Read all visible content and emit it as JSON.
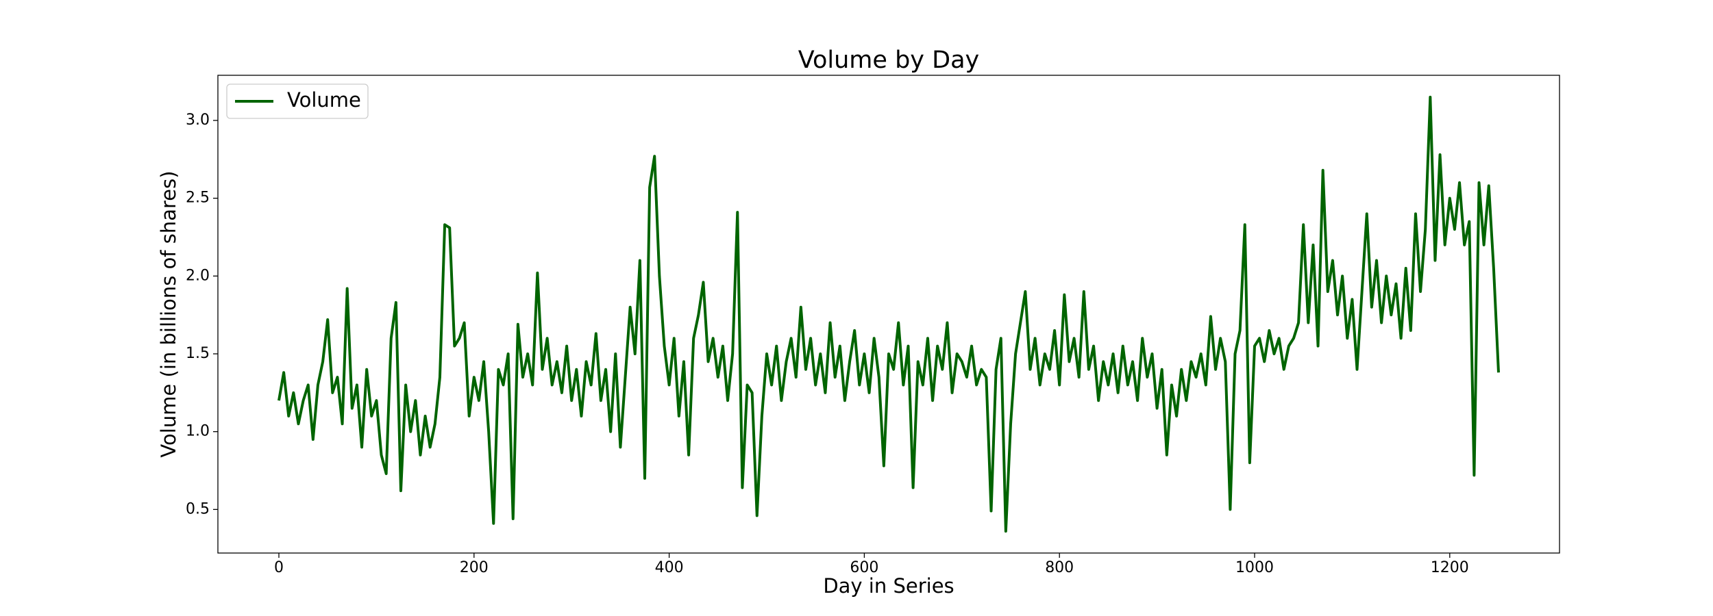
{
  "chart_data": {
    "type": "line",
    "title": "Volume by Day",
    "x_label": "Day in Series",
    "y_label": "Volume (in billions of shares)",
    "x": [
      0,
      5,
      10,
      15,
      20,
      25,
      30,
      35,
      40,
      45,
      50,
      55,
      60,
      65,
      70,
      75,
      80,
      85,
      90,
      95,
      100,
      105,
      110,
      115,
      120,
      125,
      130,
      135,
      140,
      145,
      150,
      155,
      160,
      165,
      170,
      175,
      180,
      185,
      190,
      195,
      200,
      205,
      210,
      215,
      220,
      225,
      230,
      235,
      240,
      245,
      250,
      255,
      260,
      265,
      270,
      275,
      280,
      285,
      290,
      295,
      300,
      305,
      310,
      315,
      320,
      325,
      330,
      335,
      340,
      345,
      350,
      355,
      360,
      365,
      370,
      375,
      380,
      385,
      390,
      395,
      400,
      405,
      410,
      415,
      420,
      425,
      430,
      435,
      440,
      445,
      450,
      455,
      460,
      465,
      470,
      475,
      480,
      485,
      490,
      495,
      500,
      505,
      510,
      515,
      520,
      525,
      530,
      535,
      540,
      545,
      550,
      555,
      560,
      565,
      570,
      575,
      580,
      585,
      590,
      595,
      600,
      605,
      610,
      615,
      620,
      625,
      630,
      635,
      640,
      645,
      650,
      655,
      660,
      665,
      670,
      675,
      680,
      685,
      690,
      695,
      700,
      705,
      710,
      715,
      720,
      725,
      730,
      735,
      740,
      745,
      750,
      755,
      760,
      765,
      770,
      775,
      780,
      785,
      790,
      795,
      800,
      805,
      810,
      815,
      820,
      825,
      830,
      835,
      840,
      845,
      850,
      855,
      860,
      865,
      870,
      875,
      880,
      885,
      890,
      895,
      900,
      905,
      910,
      915,
      920,
      925,
      930,
      935,
      940,
      945,
      950,
      955,
      960,
      965,
      970,
      975,
      980,
      985,
      990,
      995,
      1000,
      1005,
      1010,
      1015,
      1020,
      1025,
      1030,
      1035,
      1040,
      1045,
      1050,
      1055,
      1060,
      1065,
      1070,
      1075,
      1080,
      1085,
      1090,
      1095,
      1100,
      1105,
      1110,
      1115,
      1120,
      1125,
      1130,
      1135,
      1140,
      1145,
      1150,
      1155,
      1160,
      1165,
      1170,
      1175,
      1180,
      1185,
      1190,
      1195,
      1200,
      1205,
      1210,
      1215,
      1220,
      1225,
      1230,
      1235,
      1240,
      1245,
      1250
    ],
    "series": [
      {
        "name": "Volume",
        "color": "#006400",
        "values": [
          1.2,
          1.38,
          1.1,
          1.25,
          1.05,
          1.2,
          1.3,
          0.95,
          1.3,
          1.45,
          1.72,
          1.25,
          1.35,
          1.05,
          1.92,
          1.15,
          1.3,
          0.9,
          1.4,
          1.1,
          1.2,
          0.85,
          0.73,
          1.6,
          1.83,
          0.62,
          1.3,
          1.0,
          1.2,
          0.85,
          1.1,
          0.9,
          1.05,
          1.35,
          2.33,
          2.31,
          1.55,
          1.6,
          1.7,
          1.1,
          1.35,
          1.2,
          1.45,
          1.0,
          0.41,
          1.4,
          1.3,
          1.5,
          0.44,
          1.69,
          1.35,
          1.5,
          1.3,
          2.02,
          1.4,
          1.6,
          1.3,
          1.45,
          1.25,
          1.55,
          1.2,
          1.4,
          1.1,
          1.45,
          1.3,
          1.63,
          1.2,
          1.4,
          1.0,
          1.5,
          0.9,
          1.35,
          1.8,
          1.5,
          2.1,
          0.7,
          2.57,
          2.77,
          2.0,
          1.55,
          1.3,
          1.6,
          1.1,
          1.45,
          0.85,
          1.6,
          1.75,
          1.96,
          1.45,
          1.6,
          1.35,
          1.55,
          1.2,
          1.5,
          2.41,
          0.64,
          1.3,
          1.25,
          0.46,
          1.1,
          1.5,
          1.3,
          1.55,
          1.2,
          1.45,
          1.6,
          1.35,
          1.8,
          1.4,
          1.6,
          1.3,
          1.5,
          1.25,
          1.7,
          1.35,
          1.55,
          1.2,
          1.45,
          1.65,
          1.3,
          1.5,
          1.25,
          1.6,
          1.35,
          0.78,
          1.5,
          1.4,
          1.7,
          1.3,
          1.55,
          0.64,
          1.45,
          1.3,
          1.6,
          1.2,
          1.55,
          1.4,
          1.7,
          1.25,
          1.5,
          1.45,
          1.35,
          1.55,
          1.3,
          1.4,
          1.35,
          0.49,
          1.4,
          1.6,
          0.36,
          1.05,
          1.5,
          1.7,
          1.9,
          1.4,
          1.6,
          1.3,
          1.5,
          1.4,
          1.65,
          1.3,
          1.88,
          1.45,
          1.6,
          1.35,
          1.9,
          1.4,
          1.55,
          1.2,
          1.45,
          1.3,
          1.5,
          1.25,
          1.55,
          1.3,
          1.45,
          1.2,
          1.6,
          1.35,
          1.5,
          1.15,
          1.4,
          0.85,
          1.3,
          1.1,
          1.4,
          1.2,
          1.45,
          1.35,
          1.5,
          1.3,
          1.74,
          1.4,
          1.6,
          1.45,
          0.5,
          1.5,
          1.65,
          2.33,
          0.8,
          1.55,
          1.6,
          1.45,
          1.65,
          1.5,
          1.6,
          1.4,
          1.55,
          1.6,
          1.7,
          2.33,
          1.7,
          2.2,
          1.55,
          2.68,
          1.9,
          2.1,
          1.75,
          2.0,
          1.6,
          1.85,
          1.4,
          1.9,
          2.4,
          1.8,
          2.1,
          1.7,
          2.0,
          1.75,
          1.95,
          1.6,
          2.05,
          1.65,
          2.4,
          1.9,
          2.3,
          3.15,
          2.1,
          2.78,
          2.2,
          2.5,
          2.3,
          2.6,
          2.2,
          2.35,
          0.72,
          2.6,
          2.2,
          2.58,
          2.05,
          1.38
        ]
      }
    ],
    "xlim": [
      -62.5,
      1312.5
    ],
    "xticks": [
      0,
      200,
      400,
      600,
      800,
      1000,
      1200
    ],
    "ylim": [
      0.22,
      3.29
    ],
    "yticks": [
      0.5,
      {
        "value": 1,
        "label": "1.0"
      },
      1.5,
      {
        "value": 2,
        "label": "2.0"
      },
      2.5,
      {
        "value": 3,
        "label": "3.0"
      }
    ],
    "grid": false,
    "legend": "upper left"
  }
}
